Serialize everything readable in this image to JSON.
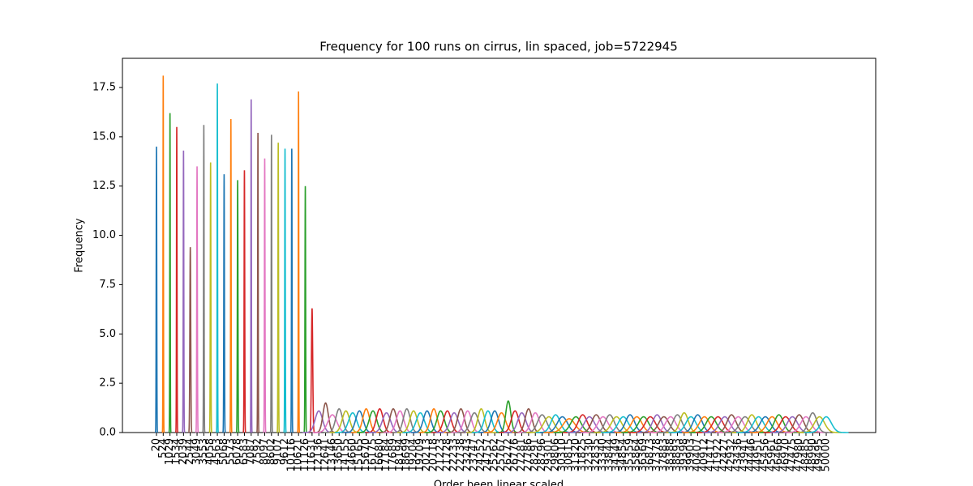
{
  "chart_data": {
    "type": "line",
    "title": "Frequency for 100 runs on cirrus, lin spaced, job=5722945",
    "xlabel": "Order been linear scaled",
    "ylabel": "Frequency",
    "x": [
      20,
      524,
      1029,
      1534,
      2039,
      2544,
      3049,
      3553,
      4058,
      4563,
      5068,
      5573,
      6078,
      6583,
      7087,
      7592,
      8097,
      8602,
      9107,
      9612,
      10116,
      10621,
      11126,
      11631,
      12136,
      12641,
      13146,
      13650,
      14155,
      14660,
      15165,
      15670,
      16175,
      16680,
      17184,
      17689,
      18194,
      18699,
      19204,
      19709,
      20213,
      20718,
      21223,
      21728,
      22233,
      22738,
      23243,
      23747,
      24252,
      24757,
      25262,
      25767,
      26272,
      26776,
      27281,
      27786,
      28291,
      28796,
      29301,
      29806,
      30310,
      30815,
      31320,
      31825,
      32330,
      32835,
      33340,
      33844,
      34349,
      34854,
      35359,
      35864,
      36369,
      36873,
      37378,
      37883,
      38388,
      38893,
      39398,
      39903,
      40407,
      40912,
      41417,
      41922,
      42427,
      42932,
      43436,
      43941,
      44446,
      44951,
      45456,
      45961,
      46466,
      46970,
      47475,
      47980,
      48485,
      48990,
      49495,
      50000
    ],
    "values": [
      14.5,
      18.1,
      16.2,
      15.5,
      14.3,
      9.4,
      13.5,
      15.6,
      13.7,
      17.7,
      13.1,
      15.9,
      12.8,
      13.3,
      16.9,
      15.2,
      13.9,
      15.1,
      14.7,
      14.4,
      14.4,
      17.3,
      12.5,
      6.3,
      1.1,
      1.5,
      0.9,
      1.2,
      1.1,
      1.0,
      1.1,
      1.2,
      1.1,
      1.2,
      1.0,
      1.2,
      1.1,
      1.2,
      1.1,
      1.0,
      1.1,
      1.2,
      1.1,
      1.1,
      1.0,
      1.2,
      1.1,
      1.0,
      1.2,
      1.1,
      1.1,
      1.0,
      1.6,
      1.1,
      1.0,
      1.2,
      1.0,
      0.9,
      0.8,
      0.9,
      0.8,
      0.7,
      0.8,
      0.9,
      0.8,
      0.9,
      0.8,
      0.9,
      0.8,
      0.8,
      0.9,
      0.8,
      0.8,
      0.8,
      0.9,
      0.8,
      0.8,
      0.9,
      1.0,
      0.8,
      0.9,
      0.8,
      0.8,
      0.8,
      0.8,
      0.9,
      0.8,
      0.8,
      0.9,
      0.8,
      0.8,
      0.8,
      0.9,
      0.8,
      0.8,
      0.9,
      0.8,
      1.0,
      0.8,
      0.8
    ],
    "colors": [
      "#1f77b4",
      "#ff7f0e",
      "#2ca02c",
      "#d62728",
      "#9467bd",
      "#8c564b",
      "#e377c2",
      "#7f7f7f",
      "#bcbd22",
      "#17becf"
    ],
    "xlim": [
      -2520,
      53690
    ],
    "ylim": [
      0,
      18.98
    ],
    "yticks": [
      {
        "value": 0,
        "label": "0.0"
      },
      2.5,
      {
        "value": 5,
        "label": "5.0"
      },
      7.5,
      {
        "value": 10,
        "label": "10.0"
      },
      12.5,
      {
        "value": 15,
        "label": "15.0"
      },
      17.5
    ],
    "grid": false
  }
}
